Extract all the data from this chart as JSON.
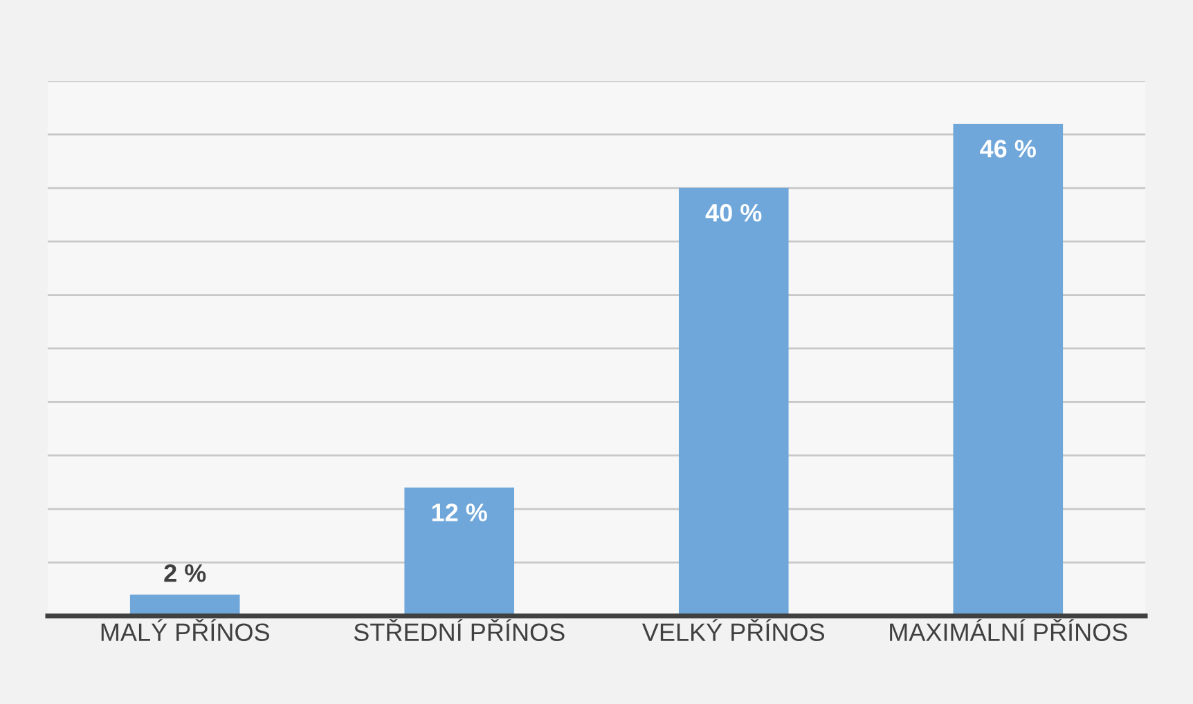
{
  "chart_data": {
    "type": "bar",
    "categories": [
      "MALÝ PŘÍNOS",
      "STŘEDNÍ PŘÍNOS",
      "VELKÝ PŘÍNOS",
      "MAXIMÁLNÍ PŘÍNOS"
    ],
    "values": [
      2,
      12,
      40,
      46
    ],
    "value_labels": [
      "2 %",
      "12 %",
      "40 %",
      "46 %"
    ],
    "color": "#6fa7da",
    "ylim": [
      0,
      50
    ],
    "yticks": [
      {
        "value": 0,
        "label": null
      },
      {
        "value": 5,
        "label": null
      },
      {
        "value": 10,
        "label": null
      },
      {
        "value": 15,
        "label": null
      },
      {
        "value": 20,
        "label": null
      },
      {
        "value": 25,
        "label": null
      },
      {
        "value": 30,
        "label": null
      },
      {
        "value": 35,
        "label": null
      },
      {
        "value": 40,
        "label": null
      },
      {
        "value": 45,
        "label": null
      },
      {
        "value": 50,
        "label": null
      }
    ],
    "tick_labels": "x",
    "grid": "y",
    "legend": false
  }
}
